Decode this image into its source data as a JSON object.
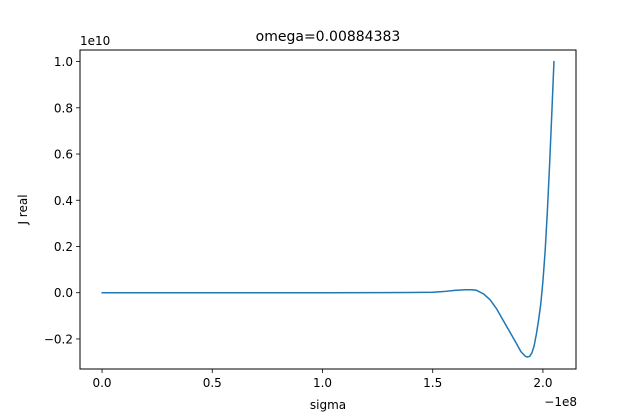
{
  "chart_data": {
    "type": "line",
    "title": "omega=0.00884383",
    "xlabel": "sigma",
    "ylabel": "J real",
    "x_offset_text": "−1e8",
    "y_offset_text": "1e10",
    "xlim": [
      -0.1,
      2.15
    ],
    "ylim": [
      -0.33,
      1.05
    ],
    "x_ticks": [
      0.0,
      0.5,
      1.0,
      1.5,
      2.0
    ],
    "x_tick_labels": [
      "0.0",
      "0.5",
      "1.0",
      "1.5",
      "2.0"
    ],
    "y_ticks": [
      -0.2,
      0.0,
      0.2,
      0.4,
      0.6,
      0.8,
      1.0
    ],
    "y_tick_labels": [
      "−0.2",
      "0.0",
      "0.2",
      "0.4",
      "0.6",
      "0.8",
      "1.0"
    ],
    "grid": false,
    "series": [
      {
        "color": "#1f77b4",
        "x": [
          0.0,
          0.5,
          1.0,
          1.4,
          1.5,
          1.55,
          1.6,
          1.65,
          1.68,
          1.7,
          1.73,
          1.76,
          1.79,
          1.82,
          1.85,
          1.88,
          1.9,
          1.92,
          1.93,
          1.94,
          1.95,
          1.96,
          1.97,
          1.98,
          1.99,
          2.0,
          2.01,
          2.02,
          2.03,
          2.04,
          2.05
        ],
        "y": [
          0.0,
          0.0,
          0.0,
          0.001,
          0.002,
          0.005,
          0.01,
          0.013,
          0.013,
          0.01,
          -0.005,
          -0.03,
          -0.07,
          -0.12,
          -0.17,
          -0.22,
          -0.255,
          -0.275,
          -0.278,
          -0.275,
          -0.26,
          -0.23,
          -0.18,
          -0.12,
          -0.05,
          0.05,
          0.18,
          0.35,
          0.55,
          0.77,
          1.0
        ]
      }
    ]
  }
}
